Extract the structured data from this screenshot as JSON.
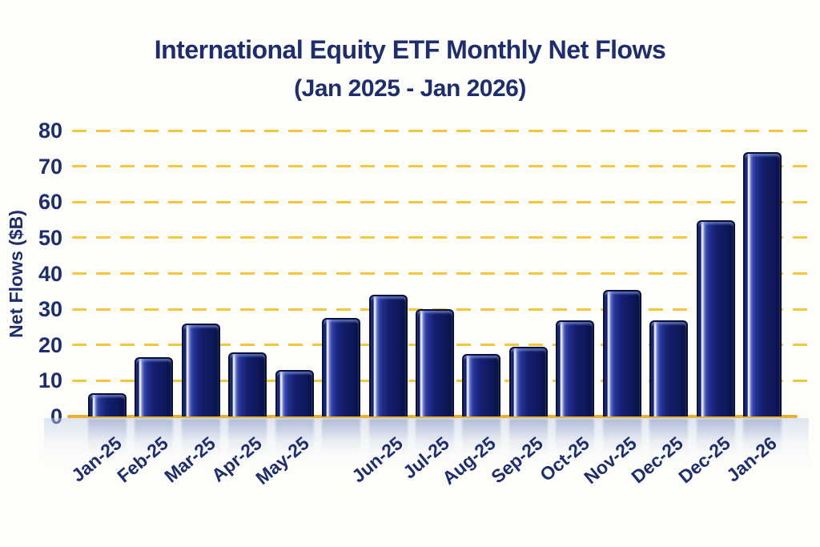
{
  "chart_data": {
    "type": "bar",
    "title": "International Equity ETF Monthly Net Flows",
    "subtitle": "(Jan 2025 - Jan 2026)",
    "xlabel": "",
    "ylabel": "Net Flows ($B)",
    "ylim": [
      0,
      80
    ],
    "yticks": [
      0,
      10,
      20,
      30,
      40,
      50,
      60,
      70,
      80
    ],
    "grid": "horizontal-dashed",
    "legend_position": "none",
    "categories": [
      "Jan-25",
      "Feb-25",
      "Mar-25",
      "Apr-25",
      "May-25",
      "",
      "Jun-25",
      "Jul-25",
      "Aug-25",
      "Sep-25",
      "Oct-25",
      "Nov-25",
      "Dec-25",
      "Dec-25",
      "Jan-26"
    ],
    "values": [
      6.5,
      16.5,
      26,
      18,
      13,
      27.5,
      34,
      30,
      17.5,
      19.5,
      27,
      35.5,
      27,
      55,
      74
    ],
    "colors": {
      "bar_primary": "#16226f",
      "bar_edge": "#081040",
      "bar_highlight": "#ffffff",
      "gridline": "#f4c73f",
      "axis_line": "#e9b237",
      "text": "#1e2d6e",
      "background": "#fdfdfa"
    }
  }
}
